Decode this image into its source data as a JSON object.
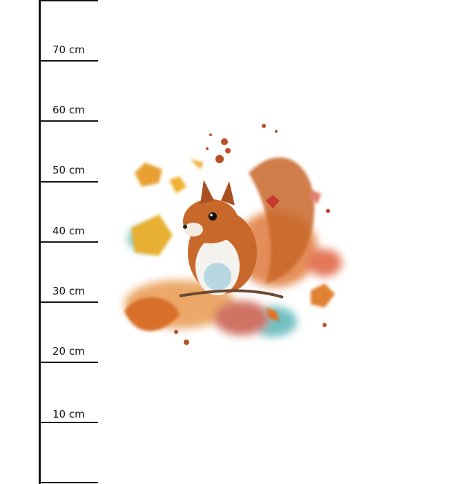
{
  "ruler": {
    "unit": "cm",
    "labels": [
      "70 cm",
      "60 cm",
      "50 cm",
      "40 cm",
      "30 cm",
      "20 cm",
      "10 cm"
    ]
  },
  "artwork": {
    "subject": "watercolor squirrel with autumn leaves",
    "colors": {
      "fur": "#c8682a",
      "leaves": "#e8a030",
      "accent_red": "#c83a30",
      "teal": "#5ab5b8"
    }
  }
}
